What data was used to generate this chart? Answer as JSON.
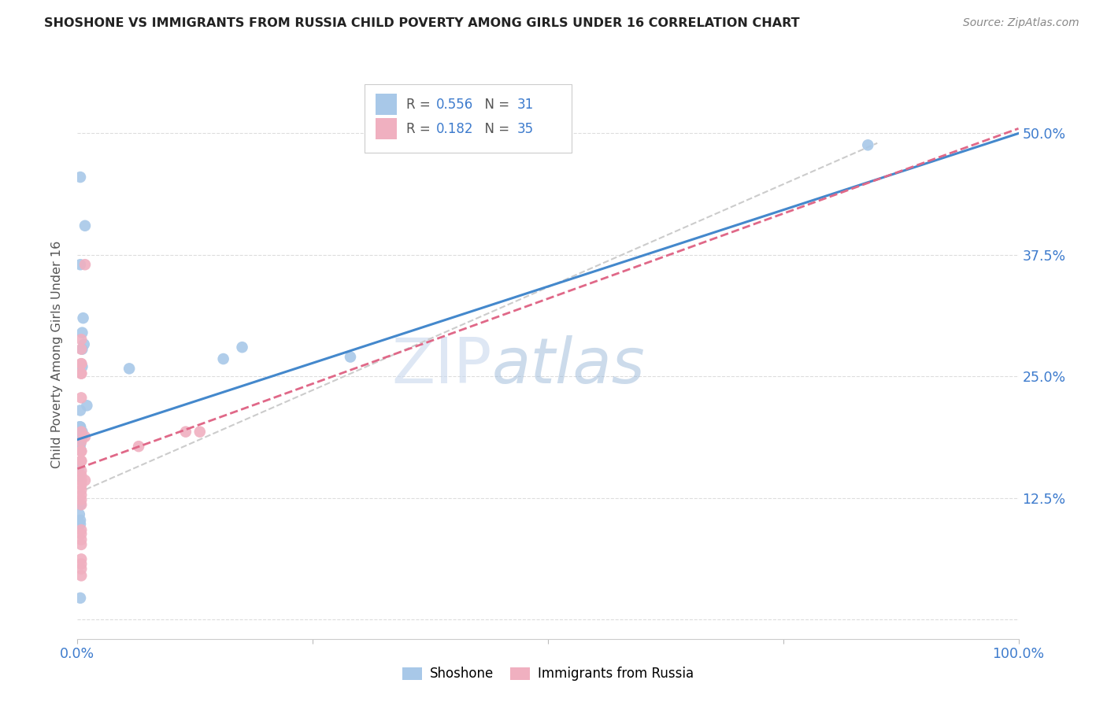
{
  "title": "SHOSHONE VS IMMIGRANTS FROM RUSSIA CHILD POVERTY AMONG GIRLS UNDER 16 CORRELATION CHART",
  "source": "Source: ZipAtlas.com",
  "ylabel": "Child Poverty Among Girls Under 16",
  "xlim": [
    0,
    1.0
  ],
  "ylim": [
    -0.02,
    0.565
  ],
  "ytick_positions": [
    0.0,
    0.125,
    0.25,
    0.375,
    0.5
  ],
  "yticklabels": [
    "",
    "12.5%",
    "25.0%",
    "37.5%",
    "50.0%"
  ],
  "shoshone_R": 0.556,
  "shoshone_N": 31,
  "russia_R": 0.182,
  "russia_N": 35,
  "shoshone_color": "#a8c8e8",
  "russia_color": "#f0b0c0",
  "shoshone_line_color": "#4488cc",
  "russia_line_color": "#e06888",
  "diagonal_color": "#cccccc",
  "watermark_zip": "ZIP",
  "watermark_atlas": "atlas",
  "shoshone_line_x0": 0.0,
  "shoshone_line_y0": 0.185,
  "shoshone_line_x1": 1.0,
  "shoshone_line_y1": 0.5,
  "russia_line_x0": 0.0,
  "russia_line_y0": 0.155,
  "russia_line_x1": 0.2,
  "russia_line_y1": 0.225,
  "shoshone_x": [
    0.003,
    0.008,
    0.003,
    0.005,
    0.006,
    0.005,
    0.007,
    0.005,
    0.003,
    0.002,
    0.003,
    0.005,
    0.005,
    0.003,
    0.003,
    0.002,
    0.003,
    0.002,
    0.002,
    0.003,
    0.01,
    0.055,
    0.155,
    0.175,
    0.29,
    0.84,
    0.002,
    0.003,
    0.003,
    0.003,
    0.003
  ],
  "shoshone_y": [
    0.455,
    0.405,
    0.365,
    0.295,
    0.31,
    0.278,
    0.283,
    0.26,
    0.215,
    0.198,
    0.198,
    0.193,
    0.188,
    0.183,
    0.18,
    0.178,
    0.175,
    0.157,
    0.147,
    0.198,
    0.22,
    0.258,
    0.268,
    0.28,
    0.27,
    0.488,
    0.108,
    0.118,
    0.102,
    0.098,
    0.022
  ],
  "russia_x": [
    0.008,
    0.004,
    0.004,
    0.004,
    0.004,
    0.004,
    0.004,
    0.004,
    0.004,
    0.008,
    0.004,
    0.004,
    0.004,
    0.004,
    0.004,
    0.004,
    0.004,
    0.004,
    0.004,
    0.004,
    0.004,
    0.004,
    0.004,
    0.008,
    0.065,
    0.115,
    0.13,
    0.004,
    0.004,
    0.004,
    0.004,
    0.004,
    0.004,
    0.004,
    0.004
  ],
  "russia_y": [
    0.365,
    0.288,
    0.278,
    0.263,
    0.263,
    0.253,
    0.253,
    0.228,
    0.193,
    0.188,
    0.183,
    0.173,
    0.173,
    0.163,
    0.163,
    0.153,
    0.148,
    0.143,
    0.138,
    0.133,
    0.128,
    0.123,
    0.118,
    0.143,
    0.178,
    0.193,
    0.193,
    0.092,
    0.088,
    0.082,
    0.077,
    0.062,
    0.057,
    0.052,
    0.045
  ]
}
